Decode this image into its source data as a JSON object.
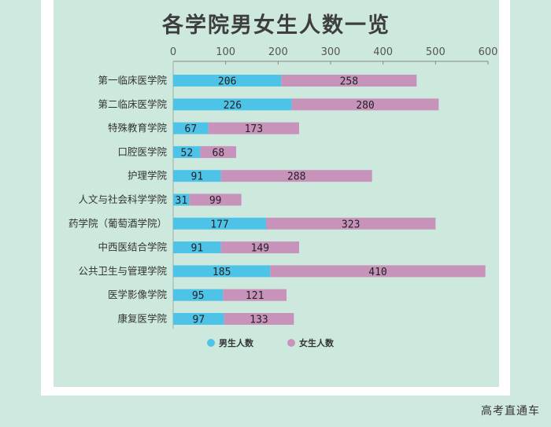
{
  "chart_data": {
    "type": "bar",
    "stacked": true,
    "orientation": "horizontal",
    "title": "各学院男女生人数一览",
    "categories": [
      "第一临床医学院",
      "第二临床医学院",
      "特殊教育学院",
      "口腔医学院",
      "护理学院",
      "人文与社会科学学院",
      "药学院（葡萄酒学院）",
      "中西医结合学院",
      "公共卫生与管理学院",
      "医学影像学院",
      "康复医学院"
    ],
    "series": [
      {
        "name": "男生人数",
        "color": "#4ec3e8",
        "values": [
          206,
          226,
          67,
          52,
          91,
          31,
          177,
          91,
          185,
          95,
          97
        ]
      },
      {
        "name": "女生人数",
        "color": "#c893bb",
        "values": [
          258,
          280,
          173,
          68,
          288,
          99,
          323,
          149,
          410,
          121,
          133
        ]
      }
    ],
    "xlim": [
      0,
      600
    ],
    "xticks": [
      0,
      100,
      200,
      300,
      400,
      500,
      600
    ],
    "legend_position": "bottom",
    "grid": false
  },
  "watermark": "高考直通车"
}
